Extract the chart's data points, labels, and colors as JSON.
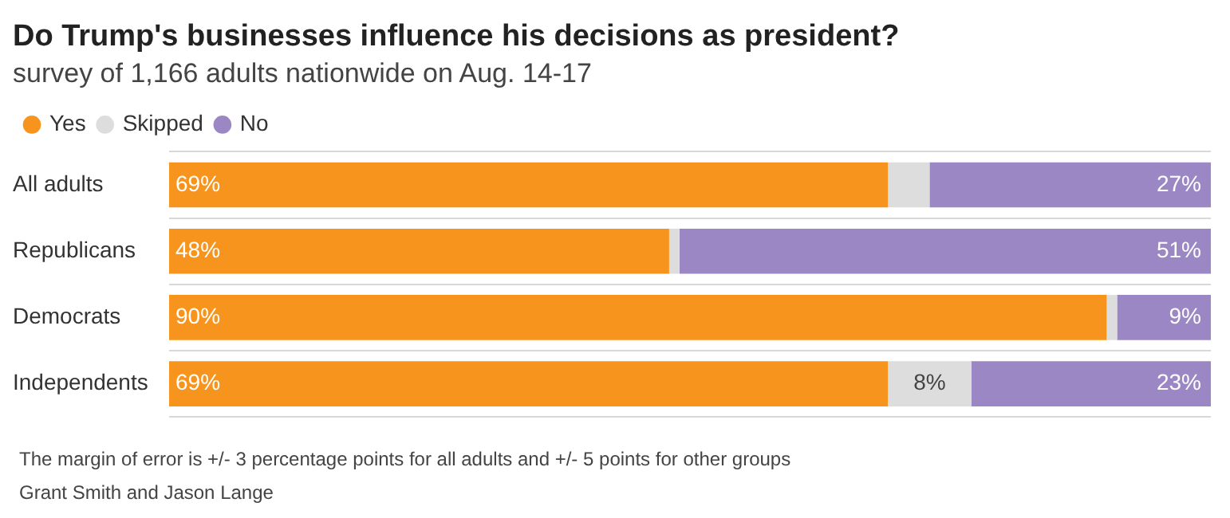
{
  "chart_data": {
    "type": "bar",
    "orientation": "horizontal",
    "stacked": true,
    "title": "Do Trump's businesses influence his decisions as president?",
    "subtitle": "survey of 1,166 adults nationwide on Aug. 14-17",
    "categories": [
      "All adults",
      "Republicans",
      "Democrats",
      "Independents"
    ],
    "series": [
      {
        "name": "Yes",
        "color": "#f7941d",
        "values": [
          69,
          48,
          90,
          69
        ],
        "value_labels": [
          "69%",
          "48%",
          "90%",
          "69%"
        ]
      },
      {
        "name": "Skipped",
        "color": "#dddddd",
        "values": [
          4,
          1,
          1,
          8
        ],
        "value_labels": [
          null,
          null,
          null,
          "8%"
        ]
      },
      {
        "name": "No",
        "color": "#9b87c4",
        "values": [
          27,
          51,
          9,
          23
        ],
        "value_labels": [
          "27%",
          "51%",
          "9%",
          "23%"
        ]
      }
    ],
    "xlim": [
      0,
      100
    ],
    "tick_labels": "y",
    "grid": "y",
    "legend": "top left",
    "annotations": [
      "The margin of error is +/- 3 percentage points for all adults and +/- 5 points for other groups",
      "Grant Smith and Jason Lange"
    ]
  }
}
